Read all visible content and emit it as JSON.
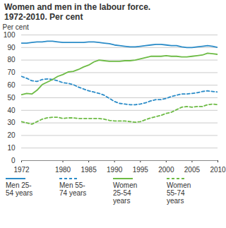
{
  "chart_data": {
    "type": "line",
    "title": "Women and men in the labour force. 1972-2010. Per cent",
    "y_label": "Per cent",
    "x": [
      1972,
      1973,
      1974,
      1975,
      1976,
      1977,
      1978,
      1979,
      1980,
      1981,
      1982,
      1983,
      1984,
      1985,
      1986,
      1987,
      1988,
      1989,
      1990,
      1991,
      1992,
      1993,
      1994,
      1995,
      1996,
      1997,
      1998,
      1999,
      2000,
      2001,
      2002,
      2003,
      2004,
      2005,
      2006,
      2007,
      2008,
      2009,
      2010
    ],
    "series": [
      {
        "name": "Men 25-54 years",
        "color": "#2b8cc8",
        "line_style": "solid",
        "values": [
          93.5,
          93.5,
          94,
          94.5,
          94.5,
          95,
          95,
          94.5,
          94,
          94,
          94,
          94,
          94,
          94.5,
          94.5,
          94,
          93.5,
          93,
          92,
          91.5,
          91,
          90.5,
          90.5,
          91,
          91.5,
          92,
          92.5,
          92.5,
          92,
          91.5,
          91.5,
          90.5,
          90,
          90,
          90.5,
          91,
          91.5,
          91,
          90
        ]
      },
      {
        "name": "Men 55-74 years",
        "color": "#2b8cc8",
        "line_style": "dashed",
        "values": [
          67,
          65.5,
          63.5,
          63,
          64.5,
          65,
          64.5,
          63.5,
          62,
          61.5,
          60.5,
          58.5,
          57,
          55.5,
          54.5,
          53.5,
          52,
          49.5,
          47,
          45.5,
          45,
          44.5,
          44.5,
          45,
          46,
          47.5,
          48.5,
          48.5,
          49.5,
          51,
          52,
          53,
          53,
          53.5,
          54,
          55,
          55.5,
          55,
          54.5
        ]
      },
      {
        "name": "Women 25-54 years",
        "color": "#6dbb45",
        "line_style": "solid",
        "values": [
          52.5,
          53.5,
          53,
          56,
          60.5,
          62.5,
          64.5,
          67,
          68.5,
          70.5,
          71,
          72.5,
          74.5,
          76,
          78.5,
          80,
          79.5,
          79,
          79,
          79,
          79.5,
          79.5,
          80,
          81,
          82,
          83,
          83,
          83,
          83.5,
          83,
          83,
          82.5,
          82.5,
          83,
          83.5,
          84,
          85.5,
          85,
          84.5
        ]
      },
      {
        "name": "Women 55-74 years",
        "color": "#6dbb45",
        "line_style": "dashed",
        "values": [
          31,
          30,
          29,
          31,
          33,
          34,
          34.5,
          34.5,
          33.5,
          34,
          34,
          33.5,
          33.5,
          33.5,
          33.5,
          33.5,
          33,
          32,
          31.5,
          31.5,
          31.5,
          31,
          30.5,
          31,
          32.5,
          34,
          35,
          36,
          37.5,
          38.5,
          40.5,
          42.5,
          43,
          42.5,
          43,
          43,
          44.5,
          45,
          44.5
        ]
      }
    ],
    "xlim": [
      1972,
      2010
    ],
    "xticks": [
      1972,
      1980,
      1985,
      1990,
      1995,
      2000,
      2005,
      2010
    ],
    "ylim": [
      0,
      100
    ],
    "yticks": [
      0,
      10,
      20,
      30,
      40,
      50,
      60,
      70,
      80,
      90,
      100
    ],
    "grid": true,
    "legend": "bottom"
  }
}
